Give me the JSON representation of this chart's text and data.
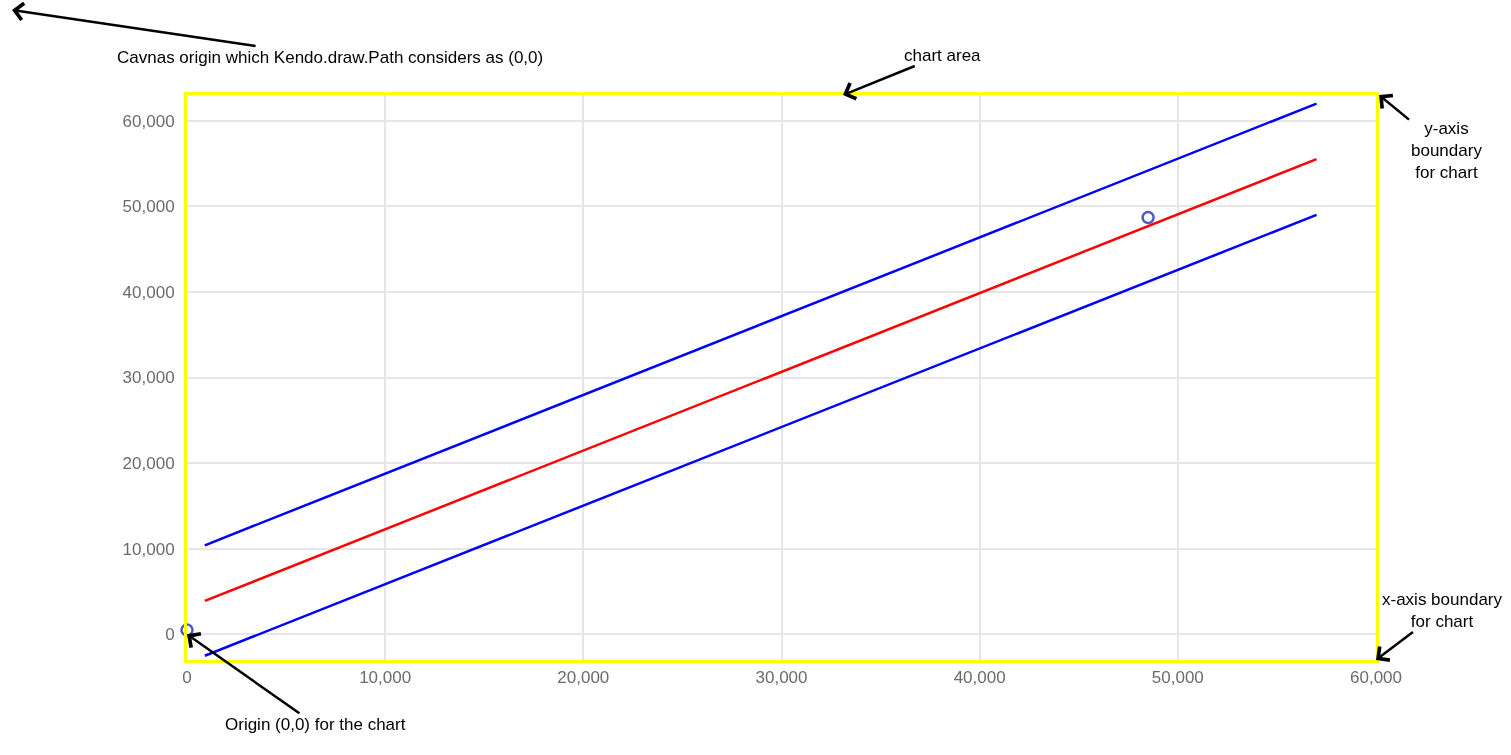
{
  "chart_data": {
    "type": "line",
    "xlim": [
      0,
      60000
    ],
    "xticks": [
      0,
      {
        "value": 10000,
        "label": "10,000"
      },
      {
        "value": 20000,
        "label": "20,000"
      },
      {
        "value": 30000,
        "label": "30,000"
      },
      {
        "value": 40000,
        "label": "40,000"
      },
      {
        "value": 50000,
        "label": "50,000"
      },
      {
        "value": 60000,
        "label": "60,000"
      }
    ],
    "ylim": [
      -3000,
      63000
    ],
    "yticks": [
      0,
      {
        "value": 10000,
        "label": "10,000"
      },
      {
        "value": 20000,
        "label": "20,000"
      },
      {
        "value": 30000,
        "label": "30,000"
      },
      {
        "value": 40000,
        "label": "40,000"
      },
      {
        "value": 50000,
        "label": "50,000"
      },
      {
        "value": 60000,
        "label": "60,000"
      }
    ],
    "grid": true,
    "series": [
      {
        "color": "#0000ff",
        "x": [
          900,
          57000
        ],
        "values": [
          10400,
          62000
        ]
      },
      {
        "color": "#ff0000",
        "x": [
          900,
          57000
        ],
        "values": [
          3900,
          55500
        ]
      },
      {
        "color": "#0000ff",
        "x": [
          900,
          57000
        ],
        "values": [
          -2500,
          49000
        ]
      },
      {
        "type": "scatter",
        "color": "#4b5cc4",
        "marker": "circle",
        "x": [
          0,
          48500
        ],
        "values": [
          500,
          48700
        ]
      }
    ],
    "annotations": [
      "Cavnas origin which Kendo.draw.Path considers as (0,0)",
      "chart area",
      "y-axis boundary for chart",
      {
        "text": "Origin (0,0) for the chart",
        "x": 0,
        "y": 0
      },
      "x-axis boundary for chart"
    ]
  }
}
